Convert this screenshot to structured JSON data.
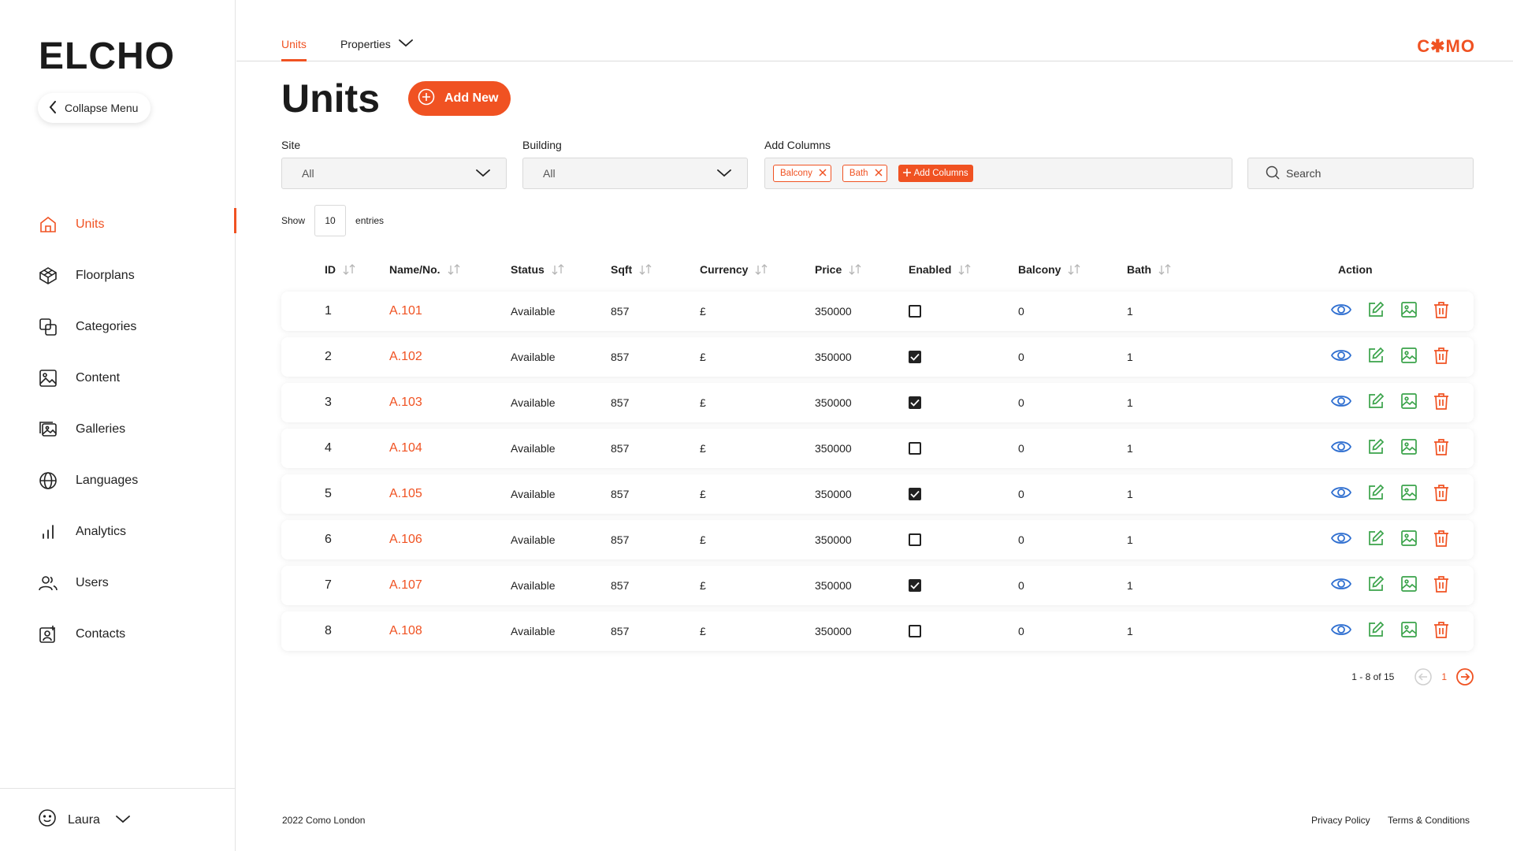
{
  "app": {
    "logo": "ELCHO",
    "brand": "C✱MO"
  },
  "sidebar": {
    "collapse_label": "Collapse Menu",
    "items": [
      {
        "label": "Units",
        "icon": "home-icon",
        "active": true
      },
      {
        "label": "Floorplans",
        "icon": "floorplan-icon"
      },
      {
        "label": "Categories",
        "icon": "categories-icon"
      },
      {
        "label": "Content",
        "icon": "image-icon"
      },
      {
        "label": "Galleries",
        "icon": "gallery-icon"
      },
      {
        "label": "Languages",
        "icon": "globe-icon"
      },
      {
        "label": "Analytics",
        "icon": "bar-chart-icon"
      },
      {
        "label": "Users",
        "icon": "users-icon"
      },
      {
        "label": "Contacts",
        "icon": "contact-icon"
      }
    ],
    "user": {
      "name": "Laura",
      "icon": "smiley-icon"
    }
  },
  "topbar": {
    "tabs": [
      {
        "label": "Units",
        "active": true
      },
      {
        "label": "Properties"
      }
    ]
  },
  "header": {
    "title": "Units",
    "add_button": "Add New"
  },
  "filters": {
    "site": {
      "label": "Site",
      "value": "All"
    },
    "building": {
      "label": "Building",
      "value": "All"
    },
    "columns": {
      "label": "Add Columns",
      "chips": [
        "Balcony",
        "Bath"
      ],
      "add_label": "Add Columns"
    },
    "search": {
      "placeholder": "Search"
    }
  },
  "show": {
    "label": "Show",
    "value": "10",
    "suffix": "entries"
  },
  "table": {
    "columns": [
      "ID",
      "Name/No.",
      "Status",
      "Sqft",
      "Currency",
      "Price",
      "Enabled",
      "Balcony",
      "Bath"
    ],
    "action_label": "Action",
    "rows": [
      {
        "id": "1",
        "name": "A.101",
        "status": "Available",
        "sqft": "857",
        "currency": "£",
        "price": "350000",
        "enabled": false,
        "balcony": "0",
        "bath": "1"
      },
      {
        "id": "2",
        "name": "A.102",
        "status": "Available",
        "sqft": "857",
        "currency": "£",
        "price": "350000",
        "enabled": true,
        "balcony": "0",
        "bath": "1"
      },
      {
        "id": "3",
        "name": "A.103",
        "status": "Available",
        "sqft": "857",
        "currency": "£",
        "price": "350000",
        "enabled": true,
        "balcony": "0",
        "bath": "1"
      },
      {
        "id": "4",
        "name": "A.104",
        "status": "Available",
        "sqft": "857",
        "currency": "£",
        "price": "350000",
        "enabled": false,
        "balcony": "0",
        "bath": "1"
      },
      {
        "id": "5",
        "name": "A.105",
        "status": "Available",
        "sqft": "857",
        "currency": "£",
        "price": "350000",
        "enabled": true,
        "balcony": "0",
        "bath": "1"
      },
      {
        "id": "6",
        "name": "A.106",
        "status": "Available",
        "sqft": "857",
        "currency": "£",
        "price": "350000",
        "enabled": false,
        "balcony": "0",
        "bath": "1"
      },
      {
        "id": "7",
        "name": "A.107",
        "status": "Available",
        "sqft": "857",
        "currency": "£",
        "price": "350000",
        "enabled": true,
        "balcony": "0",
        "bath": "1"
      },
      {
        "id": "8",
        "name": "A.108",
        "status": "Available",
        "sqft": "857",
        "currency": "£",
        "price": "350000",
        "enabled": false,
        "balcony": "0",
        "bath": "1"
      }
    ],
    "action_icons": [
      "eye-icon",
      "edit-icon",
      "image-icon",
      "trash-icon"
    ]
  },
  "pagination": {
    "summary": "1 - 8 of 15",
    "current_page": "1"
  },
  "footer": {
    "copyright": "2022 Como London",
    "privacy": "Privacy Policy",
    "terms": "Terms & Conditions"
  },
  "colors": {
    "accent": "#f05222",
    "view": "#2f6fd0",
    "edit": "#3aa34a",
    "delete": "#f05222",
    "text": "#1f1f1f"
  }
}
